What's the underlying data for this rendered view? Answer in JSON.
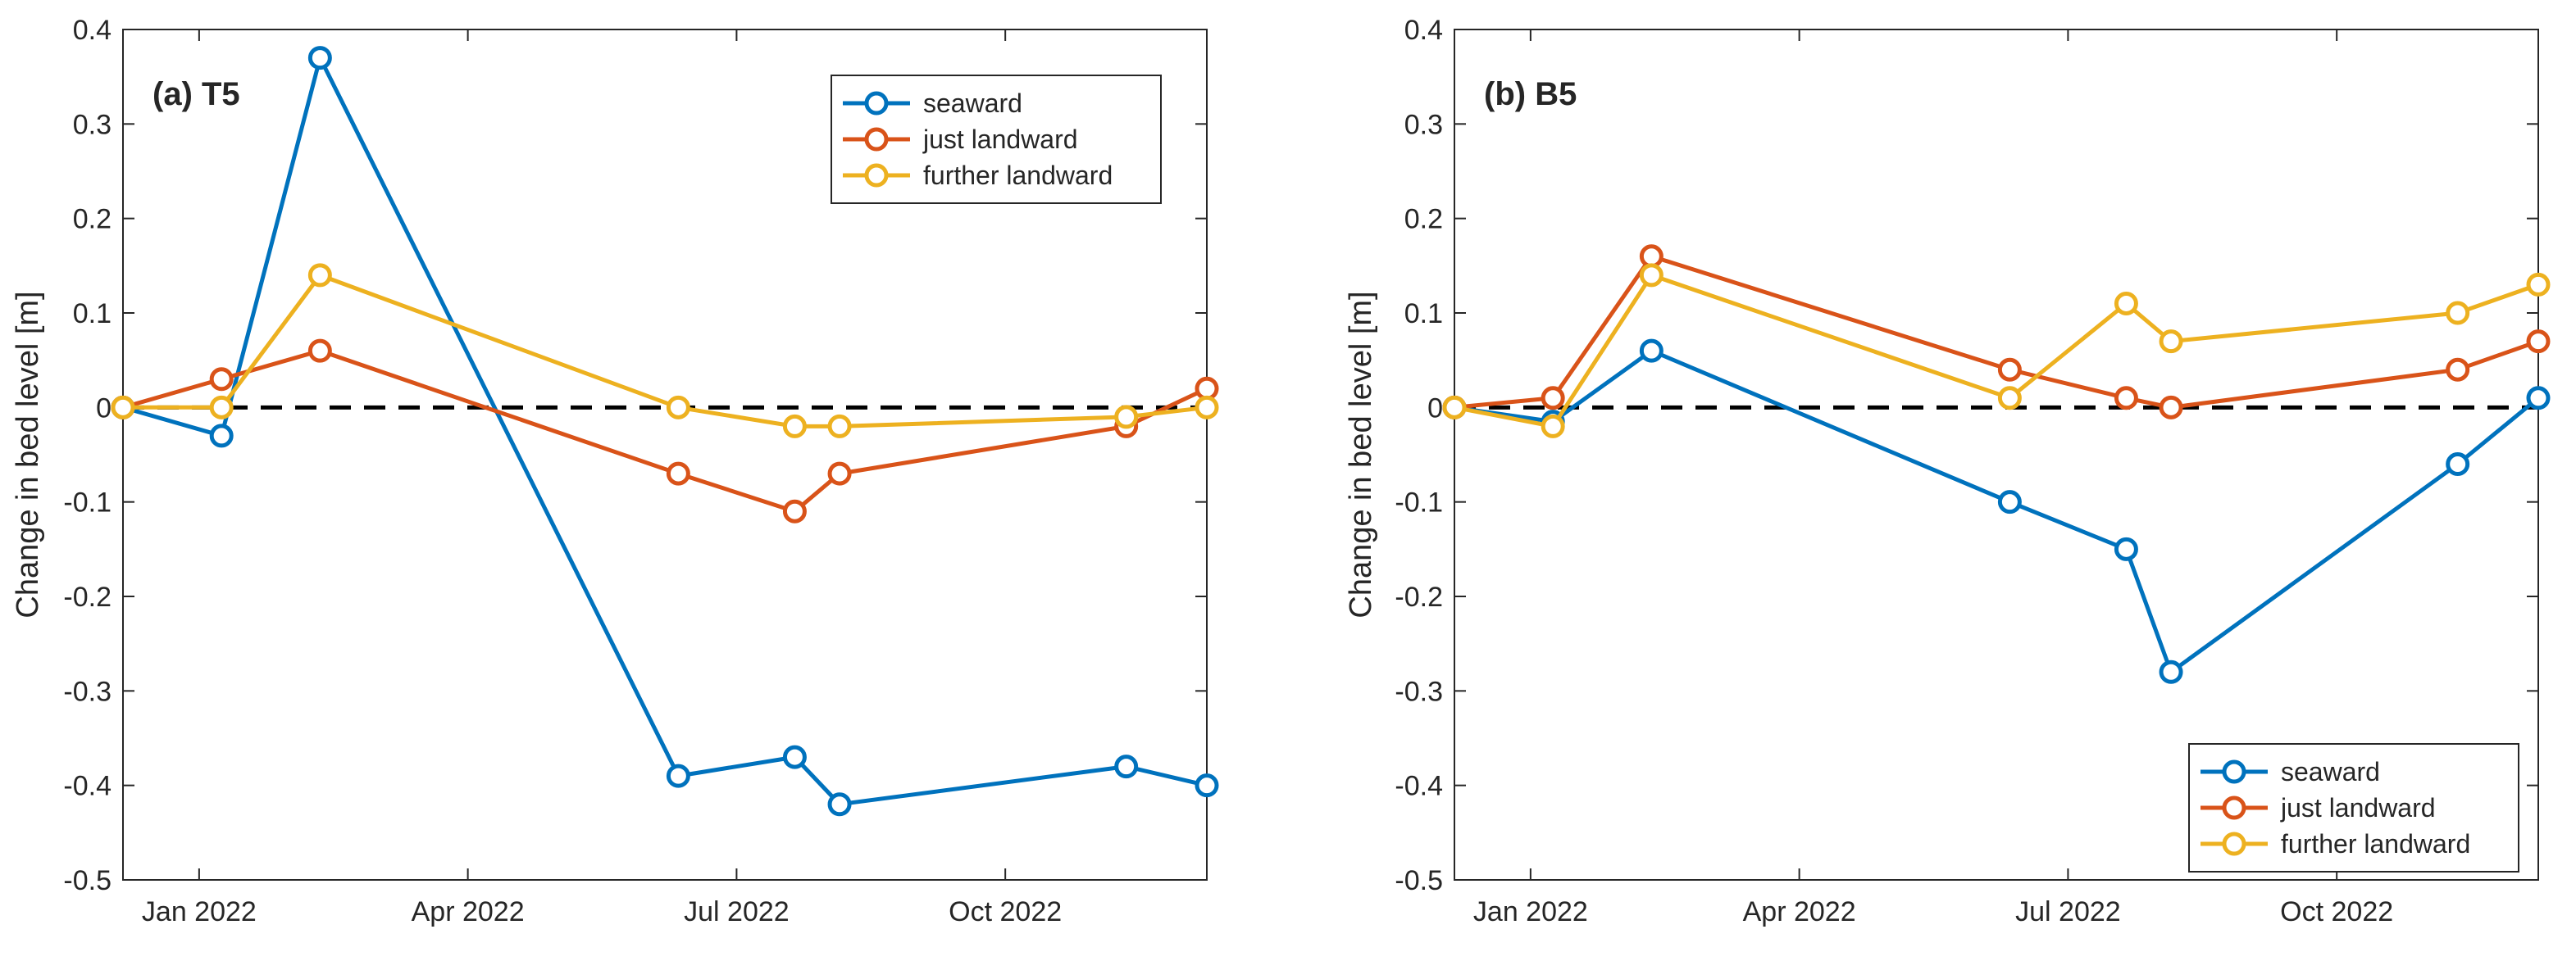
{
  "chart_data": [
    {
      "type": "line",
      "panel_label": "(a) T5",
      "ylabel": "Change in bed level [m]",
      "xlabel": "",
      "ylim": [
        -0.5,
        0.4
      ],
      "y_ticks": [
        0.4,
        0.3,
        0.2,
        0.1,
        0,
        -0.1,
        -0.2,
        -0.3,
        -0.4,
        -0.5
      ],
      "y_tick_labels": [
        "0.4",
        "0.3",
        "0.2",
        "0.1",
        "0",
        "-0.1",
        "-0.2",
        "-0.3",
        "-0.4",
        "-0.5"
      ],
      "xlim": [
        -0.6,
        11.5
      ],
      "x_ticks": [
        0.25,
        3.25,
        6.25,
        9.25
      ],
      "x_tick_labels": [
        "Jan 2022",
        "Apr 2022",
        "Jul 2022",
        "Oct 2022"
      ],
      "legend_position": "top-right",
      "zero_line": {
        "y": 0,
        "style": "dashed",
        "color": "#000000"
      },
      "series": [
        {
          "name": "seaward",
          "color": "#0072BD",
          "x": [
            -0.6,
            0.5,
            1.6,
            5.6,
            6.9,
            7.4,
            10.6,
            11.5
          ],
          "values": [
            0,
            -0.03,
            0.37,
            -0.39,
            -0.37,
            -0.42,
            -0.38,
            -0.4
          ]
        },
        {
          "name": "just landward",
          "color": "#D95319",
          "x": [
            -0.6,
            0.5,
            1.6,
            5.6,
            6.9,
            7.4,
            10.6,
            11.5
          ],
          "values": [
            0,
            0.03,
            0.06,
            -0.07,
            -0.11,
            -0.07,
            -0.02,
            0.02
          ]
        },
        {
          "name": "further landward",
          "color": "#EDB120",
          "x": [
            -0.6,
            0.5,
            1.6,
            5.6,
            6.9,
            7.4,
            10.6,
            11.5
          ],
          "values": [
            0,
            0,
            0.14,
            0,
            -0.02,
            -0.02,
            -0.01,
            0
          ]
        }
      ]
    },
    {
      "type": "line",
      "panel_label": "(b) B5",
      "ylabel": "Change in bed level [m]",
      "xlabel": "",
      "ylim": [
        -0.5,
        0.4
      ],
      "y_ticks": [
        0.4,
        0.3,
        0.2,
        0.1,
        0,
        -0.1,
        -0.2,
        -0.3,
        -0.4,
        -0.5
      ],
      "y_tick_labels": [
        "0.4",
        "0.3",
        "0.2",
        "0.1",
        "0",
        "-0.1",
        "-0.2",
        "-0.3",
        "-0.4",
        "-0.5"
      ],
      "xlim": [
        -0.6,
        11.5
      ],
      "x_ticks": [
        0.25,
        3.25,
        6.25,
        9.25
      ],
      "x_tick_labels": [
        "Jan 2022",
        "Apr 2022",
        "Jul 2022",
        "Oct 2022"
      ],
      "legend_position": "bottom-right",
      "zero_line": {
        "y": 0,
        "style": "dashed",
        "color": "#000000"
      },
      "series": [
        {
          "name": "seaward",
          "color": "#0072BD",
          "x": [
            -0.6,
            0.5,
            1.6,
            5.6,
            6.9,
            7.4,
            10.6,
            11.5
          ],
          "values": [
            0,
            -0.015,
            0.06,
            -0.1,
            -0.15,
            -0.28,
            -0.06,
            0.01
          ]
        },
        {
          "name": "just landward",
          "color": "#D95319",
          "x": [
            -0.6,
            0.5,
            1.6,
            5.6,
            6.9,
            7.4,
            10.6,
            11.5
          ],
          "values": [
            0,
            0.01,
            0.16,
            0.04,
            0.01,
            0,
            0.04,
            0.07
          ]
        },
        {
          "name": "further landward",
          "color": "#EDB120",
          "x": [
            -0.6,
            0.5,
            1.6,
            5.6,
            6.9,
            7.4,
            10.6,
            11.5
          ],
          "values": [
            0,
            -0.02,
            0.14,
            0.01,
            0.11,
            0.07,
            0.1,
            0.13
          ]
        }
      ]
    }
  ]
}
